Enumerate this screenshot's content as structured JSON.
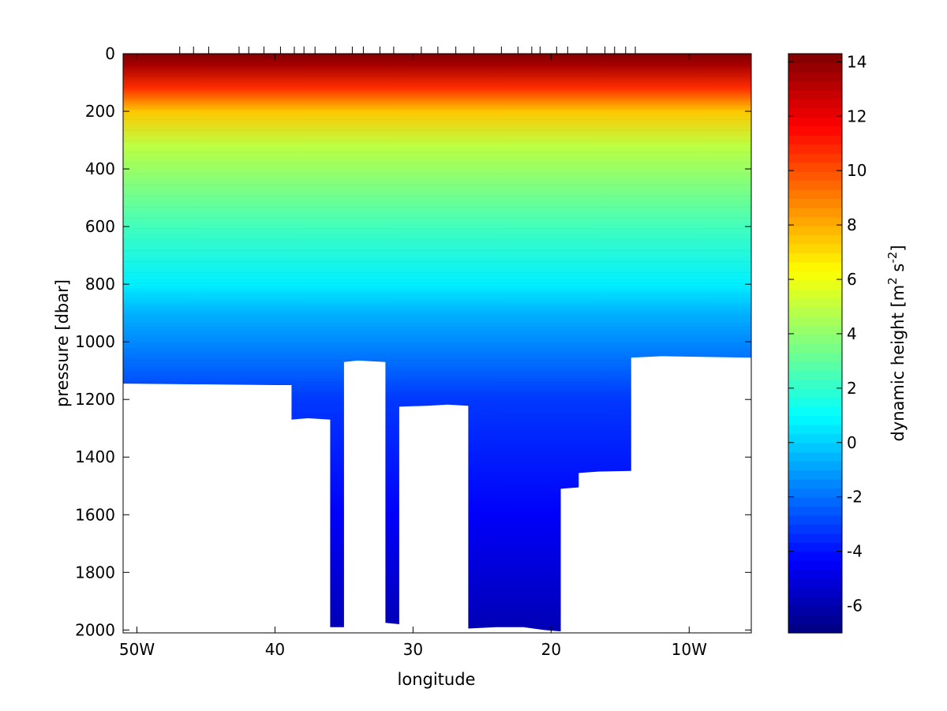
{
  "chart_data": {
    "type": "heatmap",
    "title": "",
    "xlabel": "longitude",
    "ylabel": "pressure [dbar]",
    "xlim": [
      -51,
      -5.5
    ],
    "ylim": [
      2010,
      0
    ],
    "x_ticks": [
      {
        "value": -50,
        "label": "50W"
      },
      {
        "value": -40,
        "label": "40"
      },
      {
        "value": -30,
        "label": "30"
      },
      {
        "value": -20,
        "label": "20"
      },
      {
        "value": -10,
        "label": "10W"
      }
    ],
    "y_ticks": [
      0,
      200,
      400,
      600,
      800,
      1000,
      1200,
      1400,
      1600,
      1800,
      2000
    ],
    "station_longitudes": [
      -46.9,
      -45.9,
      -44.8,
      -42.6,
      -41.9,
      -40.8,
      -39.6,
      -38.6,
      -37.9,
      -37.1,
      -35.6,
      -34.4,
      -33.6,
      -32.4,
      -31.4,
      -29.4,
      -28.2,
      -26.9,
      -25.6,
      -23.6,
      -22.4,
      -21.4,
      -20.8,
      -19.6,
      -18.8,
      -17.4,
      -16.1,
      -15.4,
      -14.6,
      -13.9
    ],
    "bottom_profile": [
      [
        -51,
        1145
      ],
      [
        -40.0,
        1150
      ],
      [
        -38.8,
        1150
      ],
      [
        -38.8,
        1270
      ],
      [
        -37.6,
        1265
      ],
      [
        -36.0,
        1270
      ],
      [
        -36.0,
        1990
      ],
      [
        -35.0,
        1990
      ],
      [
        -35.0,
        1070
      ],
      [
        -34.0,
        1065
      ],
      [
        -32.0,
        1070
      ],
      [
        -32.0,
        1975
      ],
      [
        -31.0,
        1980
      ],
      [
        -31.0,
        1225
      ],
      [
        -29.0,
        1222
      ],
      [
        -27.5,
        1218
      ],
      [
        -26.0,
        1222
      ],
      [
        -26.0,
        1995
      ],
      [
        -24.0,
        1990
      ],
      [
        -22.0,
        1990
      ],
      [
        -20.5,
        2000
      ],
      [
        -19.3,
        2005
      ],
      [
        -19.3,
        1510
      ],
      [
        -18.0,
        1505
      ],
      [
        -18.0,
        1455
      ],
      [
        -16.5,
        1450
      ],
      [
        -14.2,
        1448
      ],
      [
        -14.2,
        1055
      ],
      [
        -12.0,
        1050
      ],
      [
        -5.5,
        1055
      ]
    ],
    "colorbar": {
      "label": "dynamic height [m",
      "label_sup1": "2",
      "label_mid": " s",
      "label_sup2": "-2",
      "label_end": "]",
      "range": [
        -7,
        14.3
      ],
      "ticks": [
        -6,
        -4,
        -2,
        0,
        2,
        4,
        6,
        8,
        10,
        12,
        14
      ],
      "levels": 64,
      "colormap": "jet"
    }
  }
}
